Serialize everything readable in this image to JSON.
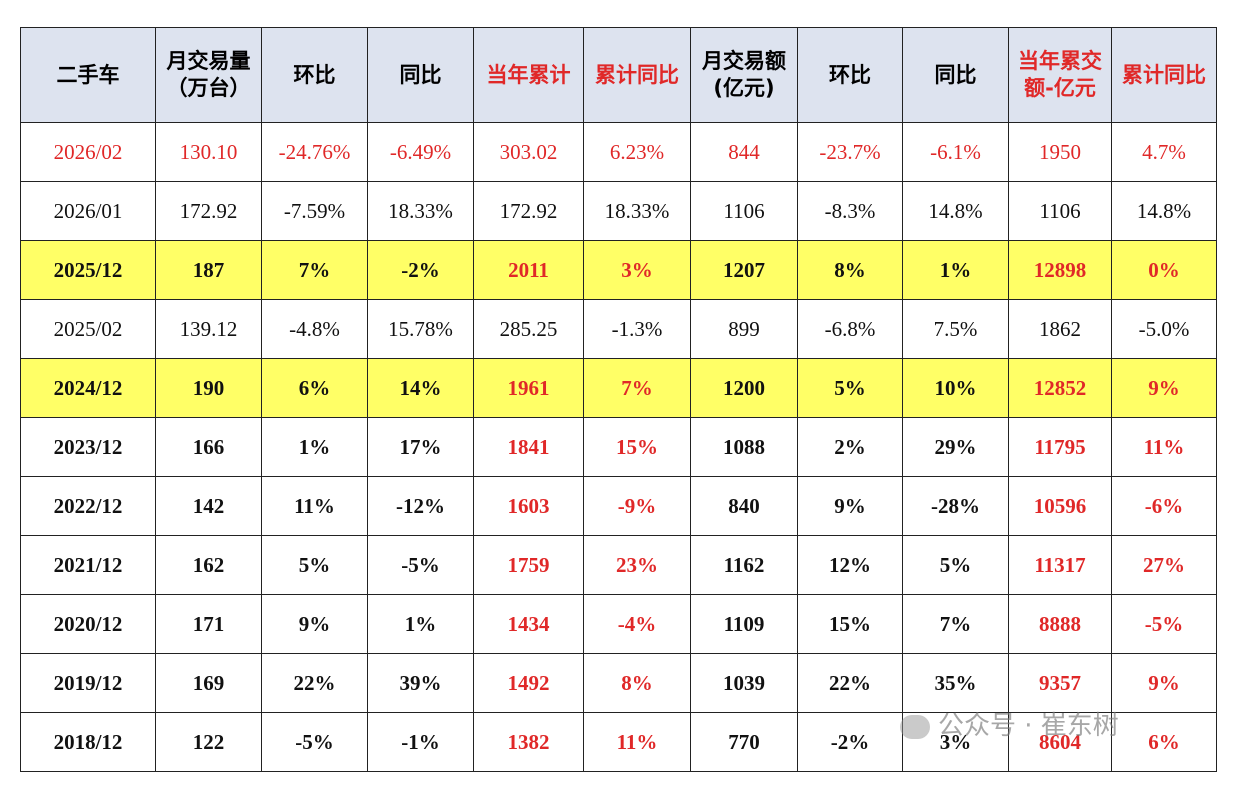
{
  "table": {
    "header": [
      [
        "二手车"
      ],
      [
        "月交易量",
        "（万台）"
      ],
      [
        "环比"
      ],
      [
        "同比"
      ],
      [
        "当年累计"
      ],
      [
        "累计同比"
      ],
      [
        "月交易额",
        "(亿元)"
      ],
      [
        "环比"
      ],
      [
        "同比"
      ],
      [
        "当年累交",
        "额-亿元"
      ],
      [
        "累计同比"
      ]
    ],
    "rows": [
      [
        "2026/02",
        "130.10",
        "-24.76%",
        "-6.49%",
        "303.02",
        "6.23%",
        "844",
        "-23.7%",
        "-6.1%",
        "1950",
        "4.7%"
      ],
      [
        "2026/01",
        "172.92",
        "-7.59%",
        "18.33%",
        "172.92",
        "18.33%",
        "1106",
        "-8.3%",
        "14.8%",
        "1106",
        "14.8%"
      ],
      [
        "2025/12",
        "187",
        "7%",
        "-2%",
        "2011",
        "3%",
        "1207",
        "8%",
        "1%",
        "12898",
        "0%"
      ],
      [
        "2025/02",
        "139.12",
        "-4.8%",
        "15.78%",
        "285.25",
        "-1.3%",
        "899",
        "-6.8%",
        "7.5%",
        "1862",
        "-5.0%"
      ],
      [
        "2024/12",
        "190",
        "6%",
        "14%",
        "1961",
        "7%",
        "1200",
        "5%",
        "10%",
        "12852",
        "9%"
      ],
      [
        "2023/12",
        "166",
        "1%",
        "17%",
        "1841",
        "15%",
        "1088",
        "2%",
        "29%",
        "11795",
        "11%"
      ],
      [
        "2022/12",
        "142",
        "11%",
        "-12%",
        "1603",
        "-9%",
        "840",
        "9%",
        "-28%",
        "10596",
        "-6%"
      ],
      [
        "2021/12",
        "162",
        "5%",
        "-5%",
        "1759",
        "23%",
        "1162",
        "12%",
        "5%",
        "11317",
        "27%"
      ],
      [
        "2020/12",
        "171",
        "9%",
        "1%",
        "1434",
        "-4%",
        "1109",
        "15%",
        "7%",
        "8888",
        "-5%"
      ],
      [
        "2019/12",
        "169",
        "22%",
        "39%",
        "1492",
        "8%",
        "1039",
        "22%",
        "35%",
        "9357",
        "9%"
      ],
      [
        "2018/12",
        "122",
        "-5%",
        "-1%",
        "1382",
        "11%",
        "770",
        "-2%",
        "3%",
        "8604",
        "6%"
      ]
    ]
  },
  "watermark": "公众号 · 崔东树"
}
